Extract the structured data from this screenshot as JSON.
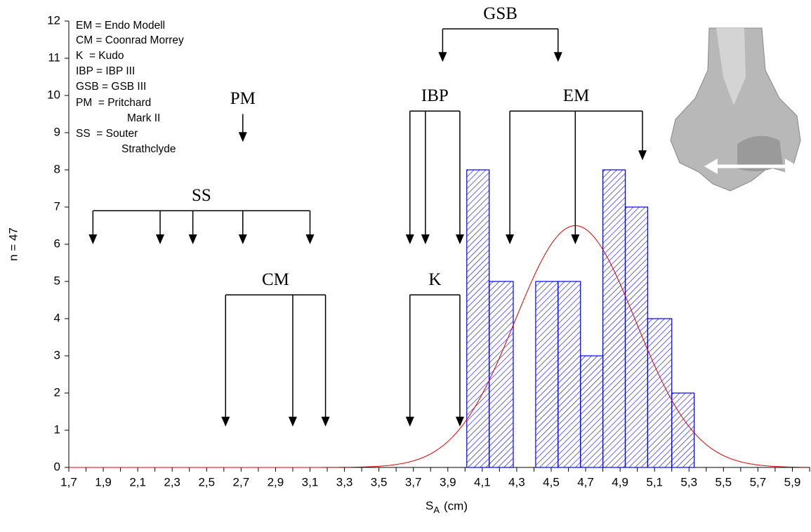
{
  "chart_data": {
    "type": "histogram",
    "xlabel": {
      "main": "S",
      "sub": "A",
      "unit": "(cm)"
    },
    "ylabel": "n = 47",
    "xlim": [
      1.7,
      6.0
    ],
    "ylim": [
      0,
      12
    ],
    "yticks": [
      0,
      1,
      2,
      3,
      4,
      5,
      6,
      7,
      8,
      9,
      10,
      11,
      12
    ],
    "xticks": [
      {
        "value": 1.7,
        "label": "1,7"
      },
      {
        "value": 1.9,
        "label": "1,9"
      },
      {
        "value": 2.1,
        "label": "2,1"
      },
      {
        "value": 2.3,
        "label": "2,3"
      },
      {
        "value": 2.5,
        "label": "2,5"
      },
      {
        "value": 2.7,
        "label": "2,7"
      },
      {
        "value": 2.9,
        "label": "2,9"
      },
      {
        "value": 3.1,
        "label": "3,1"
      },
      {
        "value": 3.3,
        "label": "3,3"
      },
      {
        "value": 3.5,
        "label": "3,5"
      },
      {
        "value": 3.7,
        "label": "3,7"
      },
      {
        "value": 3.9,
        "label": "3,9"
      },
      {
        "value": 4.1,
        "label": "4,1"
      },
      {
        "value": 4.3,
        "label": "4,3"
      },
      {
        "value": 4.5,
        "label": "4,5"
      },
      {
        "value": 4.7,
        "label": "4,7"
      },
      {
        "value": 4.9,
        "label": "4,9"
      },
      {
        "value": 5.1,
        "label": "5,1"
      },
      {
        "value": 5.3,
        "label": "5,3"
      },
      {
        "value": 5.5,
        "label": "5,5"
      },
      {
        "value": 5.7,
        "label": "5,7"
      },
      {
        "value": 5.9,
        "label": "5,9"
      }
    ],
    "xminor_ticks": [
      1.8,
      2.0,
      2.2,
      2.4,
      2.6,
      2.8,
      3.0,
      3.2,
      3.4,
      3.6,
      3.8,
      4.0,
      4.2,
      4.4,
      4.6,
      4.8,
      5.0,
      5.2,
      5.4,
      5.6,
      5.8,
      6.0
    ],
    "bins": [
      4.01,
      4.14,
      4.28,
      4.41,
      4.54,
      4.67,
      4.8,
      4.93,
      5.06,
      5.2,
      5.33
    ],
    "counts": [
      8,
      5,
      0,
      5,
      5,
      3,
      8,
      7,
      4,
      2
    ],
    "color": "#0000ff",
    "curve": {
      "mean": 4.64,
      "sd": 0.35,
      "peak": 6.5,
      "color": "#e00000"
    },
    "legend": [
      "EM = Endo Modell",
      "CM = Coonrad Morrey",
      "K  = Kudo",
      "IBP = IBP III",
      "GSB = GSB III",
      "PM  = Pritchard",
      "Mark II",
      "SS  = Souter",
      "Strathclyde"
    ],
    "annotations": [
      {
        "label": "SS",
        "bracket": 6.9,
        "arrows": [
          1.84,
          2.23,
          2.42,
          2.71,
          3.1
        ],
        "tips": [
          6.0,
          6.0,
          6.0,
          6.0,
          6.0
        ]
      },
      {
        "label": "CM",
        "bracket": 4.64,
        "arrows": [
          2.61,
          3.0,
          3.19
        ],
        "tips": [
          1.1,
          1.1,
          1.1
        ]
      },
      {
        "label": "K",
        "bracket": 4.64,
        "arrows": [
          3.68,
          3.97
        ],
        "tips": [
          1.1,
          1.1
        ]
      },
      {
        "label": "IBP",
        "bracket": 9.58,
        "arrows": [
          3.68,
          3.77,
          3.97
        ],
        "tips": [
          6.0,
          6.0,
          6.0
        ]
      },
      {
        "label": "EM",
        "bracket": 9.58,
        "arrows": [
          4.26,
          4.64,
          5.03
        ],
        "tips": [
          6.0,
          6.0,
          8.26
        ]
      },
      {
        "label": "GSB",
        "bracket": 11.79,
        "arrows": [
          3.87,
          4.54
        ],
        "tips": [
          10.9,
          10.9
        ]
      },
      {
        "label": "PM",
        "bracket": 9.5,
        "arrows": [
          2.71
        ],
        "tips": [
          8.75
        ]
      }
    ]
  }
}
